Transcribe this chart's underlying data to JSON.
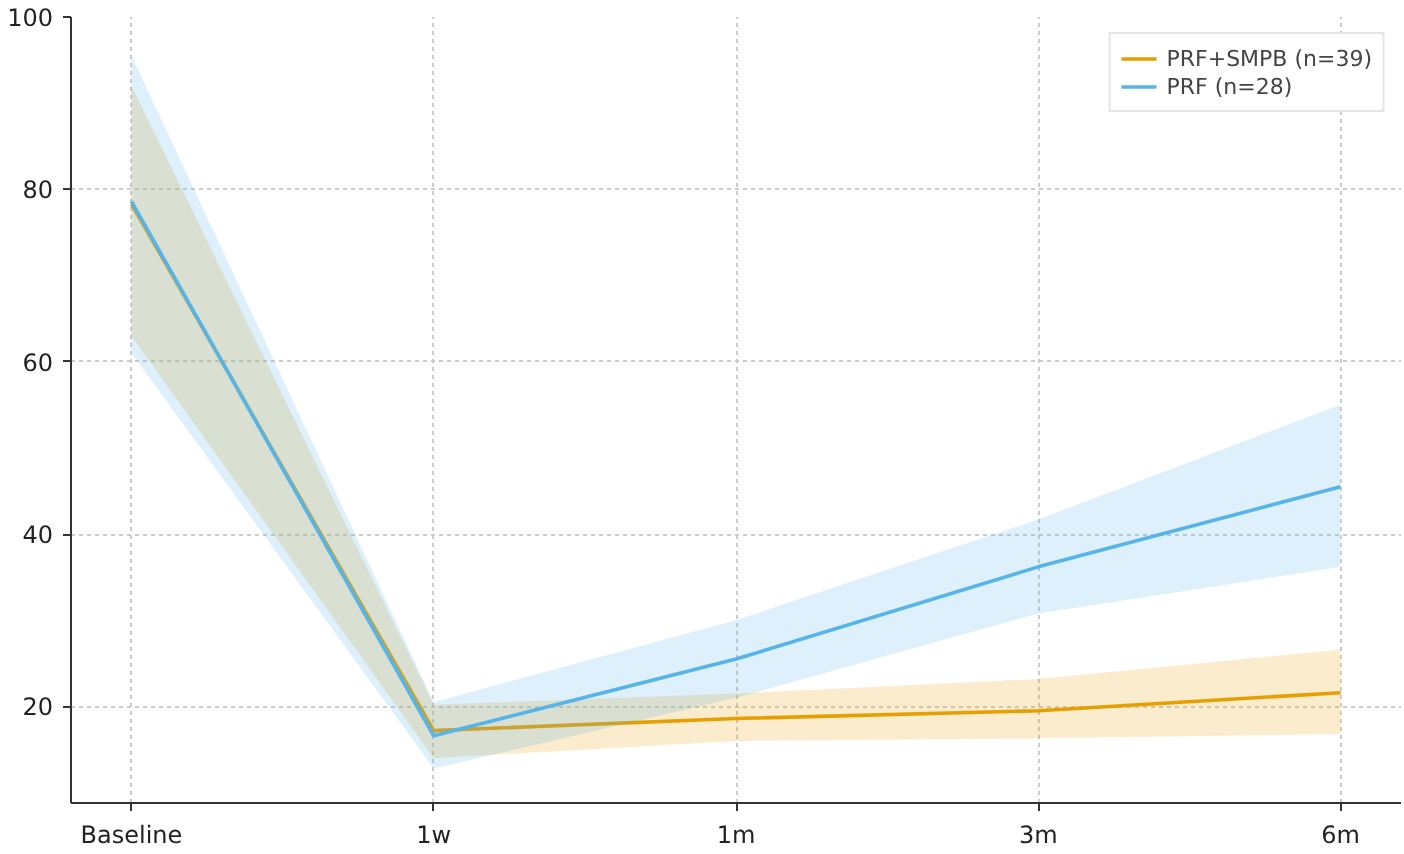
{
  "chart_data": {
    "type": "line",
    "categories": [
      "Baseline",
      "1w",
      "1m",
      "3m",
      "6m"
    ],
    "series": [
      {
        "name": "PRF+SMPB (n=39)",
        "color": "#e69f00",
        "values": [
          78.3,
          17.2,
          18.6,
          19.5,
          21.6
        ],
        "lower": [
          63,
          14,
          16,
          16.3,
          16.8
        ],
        "upper": [
          92,
          20.2,
          21.5,
          23.2,
          26.6
        ]
      },
      {
        "name": "PRF (n=28)",
        "color": "#56b4e9",
        "values": [
          78.6,
          16.6,
          25.5,
          36.2,
          45.5
        ],
        "lower": [
          61,
          12.8,
          21,
          30.8,
          36.2
        ],
        "upper": [
          95.5,
          20.5,
          30,
          41.7,
          55
        ]
      }
    ],
    "ylim": [
      8.8,
      100
    ],
    "yticks": [
      20,
      40,
      60,
      80,
      100
    ],
    "grid": true,
    "legend": "top right",
    "line_style": "solid",
    "marker": "none"
  }
}
